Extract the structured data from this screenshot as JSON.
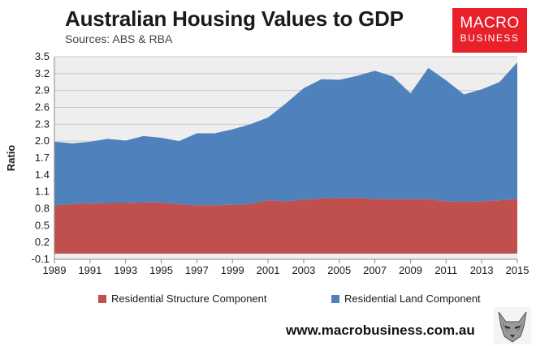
{
  "header": {
    "title": "Australian Housing Values to GDP",
    "subtitle": "Sources: ABS & RBA"
  },
  "logo": {
    "line1": "MACRO",
    "line2": "BUSINESS",
    "color": "#e8202a"
  },
  "footer": {
    "website": "www.macrobusiness.com.au"
  },
  "chart_data": {
    "type": "area",
    "stacked": true,
    "ylabel": "Ratio",
    "xlabel": "",
    "ylim": [
      -0.1,
      3.5
    ],
    "yticks": [
      "3.5",
      "3.2",
      "2.9",
      "2.6",
      "2.3",
      "2.0",
      "1.7",
      "1.4",
      "1.1",
      "0.8",
      "0.5",
      "0.2",
      "-0.1"
    ],
    "ytick_values": [
      3.5,
      3.2,
      2.9,
      2.6,
      2.3,
      2.0,
      1.7,
      1.4,
      1.1,
      0.8,
      0.5,
      0.2,
      -0.1
    ],
    "xticks": [
      "1989",
      "1991",
      "1993",
      "1995",
      "1997",
      "1999",
      "2001",
      "2003",
      "2005",
      "2007",
      "2009",
      "2011",
      "2013",
      "2015"
    ],
    "x": [
      1989,
      1990,
      1991,
      1992,
      1993,
      1994,
      1995,
      1996,
      1997,
      1998,
      1999,
      2000,
      2001,
      2002,
      2003,
      2004,
      2005,
      2006,
      2007,
      2008,
      2009,
      2010,
      2011,
      2012,
      2013,
      2014,
      2015
    ],
    "grid": "horizontal",
    "plot_background": "#eeeeee",
    "legend_position": "bottom",
    "series": [
      {
        "name": "Residential Structure Component",
        "color": "#c0504d",
        "values": [
          0.86,
          0.88,
          0.89,
          0.9,
          0.9,
          0.91,
          0.91,
          0.88,
          0.86,
          0.86,
          0.87,
          0.88,
          0.95,
          0.93,
          0.96,
          0.98,
          0.99,
          0.99,
          0.97,
          0.97,
          0.97,
          0.97,
          0.93,
          0.92,
          0.93,
          0.95,
          0.97
        ]
      },
      {
        "name": "Residential Land Component",
        "color": "#4f81bd",
        "values": [
          1.13,
          1.08,
          1.1,
          1.14,
          1.11,
          1.18,
          1.15,
          1.12,
          1.28,
          1.28,
          1.34,
          1.42,
          1.47,
          1.74,
          1.98,
          2.12,
          2.1,
          2.17,
          2.28,
          2.18,
          1.88,
          2.33,
          2.15,
          1.91,
          1.99,
          2.1,
          2.43
        ]
      }
    ]
  }
}
